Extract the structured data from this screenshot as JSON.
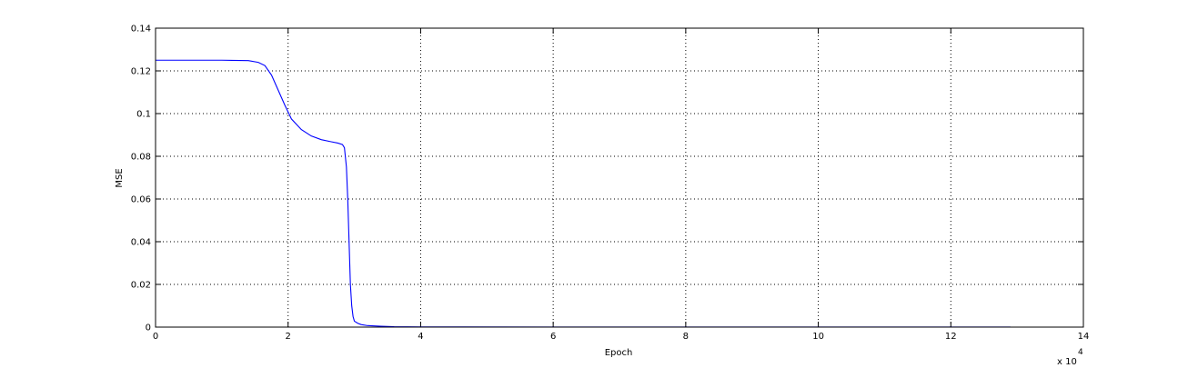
{
  "chart_data": {
    "type": "line",
    "title": "",
    "xlabel": "Epoch",
    "ylabel": "MSE",
    "x_multiplier_label": "x 10",
    "x_multiplier_exponent": "4",
    "xlim": [
      0,
      14
    ],
    "ylim": [
      0,
      0.14
    ],
    "xticks": [
      0,
      2,
      4,
      6,
      8,
      10,
      12,
      14
    ],
    "xtick_labels": [
      "0",
      "2",
      "4",
      "6",
      "8",
      "10",
      "12",
      "14"
    ],
    "yticks": [
      0,
      0.02,
      0.04,
      0.06,
      0.08,
      0.1,
      0.12,
      0.14
    ],
    "ytick_labels": [
      "0",
      "0.02",
      "0.04",
      "0.06",
      "0.08",
      "0.1",
      "0.12",
      "0.14"
    ],
    "grid": true,
    "grid_style": "dotted",
    "series_color": "#0000ff",
    "series": [
      {
        "x": [
          0,
          0.5,
          1.0,
          1.4,
          1.55,
          1.65,
          1.75,
          1.85,
          1.95,
          2.05,
          2.2,
          2.35,
          2.5,
          2.65,
          2.75,
          2.82,
          2.85,
          2.88,
          2.9,
          2.92,
          2.94,
          2.96,
          2.98,
          3.0,
          3.05,
          3.1,
          3.2,
          3.4,
          3.6,
          4.0,
          6.0,
          8.0,
          10.0,
          12.0,
          12.9
        ],
        "y": [
          0.125,
          0.125,
          0.125,
          0.1248,
          0.124,
          0.1225,
          0.118,
          0.111,
          0.104,
          0.0975,
          0.0925,
          0.0895,
          0.0878,
          0.0868,
          0.0862,
          0.0855,
          0.084,
          0.075,
          0.06,
          0.04,
          0.02,
          0.01,
          0.005,
          0.0028,
          0.0018,
          0.0012,
          0.0007,
          0.0004,
          0.0002,
          0.0001,
          5e-05,
          3e-05,
          2e-05,
          1e-05,
          1e-05
        ]
      }
    ]
  }
}
